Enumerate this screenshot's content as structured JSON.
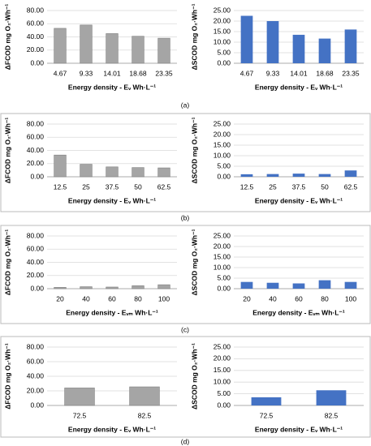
{
  "panel_labels": [
    "(a)",
    "(b)",
    "(c)",
    "(d)"
  ],
  "chart_data": [
    {
      "type": "bar",
      "ylabel": "ΔFCOD mg O₂·Wh⁻¹",
      "xlabel": "Energy density - Eᵥ Wh·L⁻¹",
      "categories": [
        "4.67",
        "9.33",
        "14.01",
        "18.68",
        "23.35"
      ],
      "values": [
        53,
        58,
        45,
        41,
        38
      ],
      "color": "#a5a5a5",
      "ylim": [
        0,
        80
      ],
      "yticks": [
        {
          "value": 0,
          "label": "0.00"
        },
        {
          "value": 20,
          "label": "20.00"
        },
        {
          "value": 40,
          "label": "40.00"
        },
        {
          "value": 60,
          "label": "60.00"
        },
        {
          "value": 80,
          "label": "80.00"
        }
      ],
      "grid": true
    },
    {
      "type": "bar",
      "ylabel": "ΔSCOD mg O₂·Wh⁻¹",
      "xlabel": "Energy density - Eᵥ Wh·L⁻¹",
      "categories": [
        "4.67",
        "9.33",
        "14.01",
        "18.68",
        "23.35"
      ],
      "values": [
        22.5,
        20,
        13.5,
        11.7,
        16
      ],
      "color": "#4472c4",
      "ylim": [
        0,
        25
      ],
      "yticks": [
        {
          "value": 0,
          "label": "0.00"
        },
        {
          "value": 5,
          "label": "5.00"
        },
        {
          "value": 10,
          "label": "10.00"
        },
        {
          "value": 15,
          "label": "15.00"
        },
        {
          "value": 20,
          "label": "20.00"
        },
        {
          "value": 25,
          "label": "25.00"
        }
      ],
      "grid": true
    },
    {
      "type": "bar",
      "ylabel": "ΔFCOD mg O₂·Wh⁻¹",
      "xlabel": "Energy density - Eᵥ Wh·L⁻¹",
      "categories": [
        "12.5",
        "25",
        "37.5",
        "50",
        "62.5"
      ],
      "values": [
        33,
        19,
        15,
        14,
        13.5
      ],
      "color": "#a5a5a5",
      "ylim": [
        0,
        80
      ],
      "yticks": [
        {
          "value": 0,
          "label": "0.00"
        },
        {
          "value": 20,
          "label": "20.00"
        },
        {
          "value": 40,
          "label": "40.00"
        },
        {
          "value": 60,
          "label": "60.00"
        },
        {
          "value": 80,
          "label": "80.00"
        }
      ],
      "grid": true
    },
    {
      "type": "bar",
      "ylabel": "ΔSCOD mg O₂·Wh⁻¹",
      "xlabel": "Energy density - Eᵥ Wh·L⁻¹",
      "categories": [
        "12.5",
        "25",
        "37.5",
        "50",
        "62.5"
      ],
      "values": [
        1.2,
        1.3,
        1.5,
        1.3,
        3
      ],
      "color": "#4472c4",
      "ylim": [
        0,
        25
      ],
      "yticks": [
        {
          "value": 0,
          "label": "0.00"
        },
        {
          "value": 5,
          "label": "5.00"
        },
        {
          "value": 10,
          "label": "10.00"
        },
        {
          "value": 15,
          "label": "15.00"
        },
        {
          "value": 20,
          "label": "20.00"
        },
        {
          "value": 25,
          "label": "25.00"
        }
      ],
      "grid": true
    },
    {
      "type": "bar",
      "ylabel": "ΔFCOD mg O₂·Wh⁻¹",
      "xlabel": "Energy density - Eᵥₘ Wh·L⁻¹",
      "categories": [
        "20",
        "40",
        "60",
        "80",
        "100"
      ],
      "values": [
        2,
        3,
        2.5,
        4.5,
        6
      ],
      "color": "#a5a5a5",
      "ylim": [
        0,
        80
      ],
      "yticks": [
        {
          "value": 0,
          "label": "0.00"
        },
        {
          "value": 20,
          "label": "20.00"
        },
        {
          "value": 40,
          "label": "40.00"
        },
        {
          "value": 60,
          "label": "60.00"
        },
        {
          "value": 80,
          "label": "80.00"
        }
      ],
      "grid": true
    },
    {
      "type": "bar",
      "ylabel": "ΔSCOD mg O₂·Wh⁻¹",
      "xlabel": "Energy density - Eᵥₘ Wh·L⁻¹",
      "categories": [
        "20",
        "40",
        "60",
        "80",
        "100"
      ],
      "values": [
        3.2,
        2.8,
        2.5,
        4,
        3.2
      ],
      "color": "#4472c4",
      "ylim": [
        0,
        25
      ],
      "yticks": [
        {
          "value": 0,
          "label": "0.00"
        },
        {
          "value": 5,
          "label": "5.00"
        },
        {
          "value": 10,
          "label": "10.00"
        },
        {
          "value": 15,
          "label": "15.00"
        },
        {
          "value": 20,
          "label": "20.00"
        },
        {
          "value": 25,
          "label": "25.00"
        }
      ],
      "grid": true
    },
    {
      "type": "bar",
      "ylabel": "ΔFCOD mg O₂·Wh⁻¹",
      "xlabel": "Energy density - Eᵥ Wh·L⁻¹",
      "categories": [
        "72.5",
        "82.5"
      ],
      "values": [
        24,
        25.5
      ],
      "color": "#a5a5a5",
      "ylim": [
        0,
        80
      ],
      "yticks": [
        {
          "value": 0,
          "label": "0.00"
        },
        {
          "value": 20,
          "label": "20.00"
        },
        {
          "value": 40,
          "label": "40.00"
        },
        {
          "value": 60,
          "label": "60.00"
        },
        {
          "value": 80,
          "label": "80.00"
        }
      ],
      "grid": true
    },
    {
      "type": "bar",
      "ylabel": "ΔSCOD mg O₂·Wh⁻¹",
      "xlabel": "Energy density - Eᵥ Wh·L⁻¹",
      "categories": [
        "72.5",
        "82.5"
      ],
      "values": [
        3.5,
        6.5
      ],
      "color": "#4472c4",
      "ylim": [
        0,
        25
      ],
      "yticks": [
        {
          "value": 0,
          "label": "0.00"
        },
        {
          "value": 5,
          "label": "5.00"
        },
        {
          "value": 10,
          "label": "10.00"
        },
        {
          "value": 15,
          "label": "15.00"
        },
        {
          "value": 20,
          "label": "20.00"
        },
        {
          "value": 25,
          "label": "25.00"
        }
      ],
      "grid": true
    }
  ]
}
